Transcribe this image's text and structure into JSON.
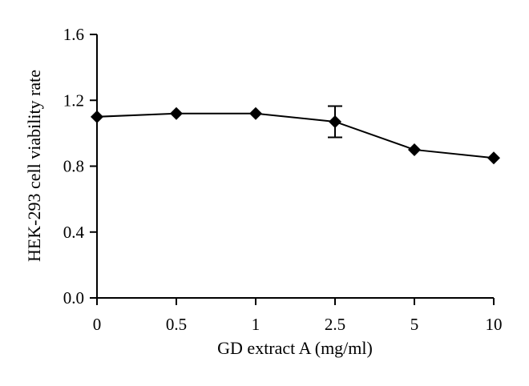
{
  "chart_data": {
    "type": "line",
    "categories": [
      "0",
      "0.5",
      "1",
      "2.5",
      "5",
      "10"
    ],
    "values": [
      1.1,
      1.12,
      1.12,
      1.07,
      0.9,
      0.85
    ],
    "error": [
      null,
      null,
      null,
      0.095,
      null,
      null
    ],
    "xlabel": "GD extract A (mg/ml)",
    "ylabel": "HEK-293 cell viability rate",
    "ylim": [
      0,
      1.6
    ],
    "yticks": [
      "0.0",
      "0.4",
      "0.8",
      "1.2",
      "1.6"
    ],
    "marker": "diamond",
    "grid": false,
    "colors": {
      "series": "#000000",
      "axis": "#000000"
    }
  }
}
